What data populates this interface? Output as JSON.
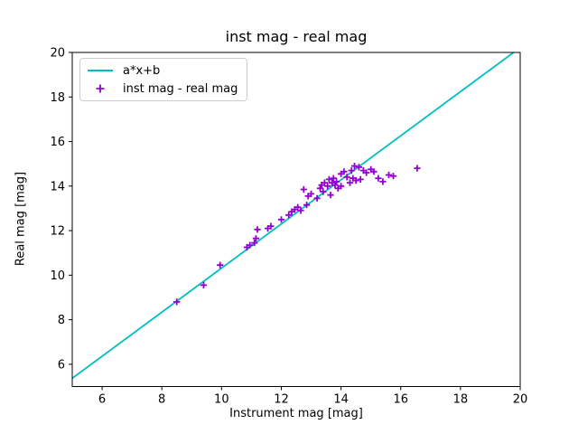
{
  "chart_data": {
    "type": "scatter",
    "title": "inst mag - real mag",
    "xlabel": "Instrument mag [mag]",
    "ylabel": "Real mag [mag]",
    "xlim": [
      5,
      20
    ],
    "ylim": [
      5,
      20
    ],
    "xticks": [
      6,
      8,
      10,
      12,
      14,
      16,
      18,
      20
    ],
    "yticks": [
      6,
      8,
      10,
      12,
      14,
      16,
      18,
      20
    ],
    "grid": false,
    "legend_position": "upper left",
    "background_color": "#ffffff",
    "axis_color": "#000000",
    "series": [
      {
        "name": "a*x+b",
        "type": "line",
        "color": "#00bfbf",
        "a": 0.99,
        "b": 0.42
      },
      {
        "name": "inst mag - real mag",
        "type": "scatter",
        "marker": "+",
        "color": "#9400d3",
        "points": [
          [
            8.5,
            8.8
          ],
          [
            9.4,
            9.55
          ],
          [
            9.95,
            10.45
          ],
          [
            10.85,
            11.25
          ],
          [
            10.95,
            11.35
          ],
          [
            11.1,
            11.45
          ],
          [
            11.15,
            11.65
          ],
          [
            11.2,
            12.05
          ],
          [
            11.55,
            12.1
          ],
          [
            11.65,
            12.2
          ],
          [
            12.0,
            12.5
          ],
          [
            12.25,
            12.7
          ],
          [
            12.35,
            12.85
          ],
          [
            12.45,
            12.95
          ],
          [
            12.55,
            13.05
          ],
          [
            12.65,
            12.9
          ],
          [
            12.75,
            13.85
          ],
          [
            12.85,
            13.15
          ],
          [
            12.9,
            13.55
          ],
          [
            13.0,
            13.65
          ],
          [
            13.2,
            13.45
          ],
          [
            13.3,
            13.9
          ],
          [
            13.35,
            14.05
          ],
          [
            13.4,
            13.75
          ],
          [
            13.45,
            14.15
          ],
          [
            13.55,
            14.0
          ],
          [
            13.6,
            14.3
          ],
          [
            13.65,
            13.6
          ],
          [
            13.7,
            14.15
          ],
          [
            13.75,
            14.35
          ],
          [
            13.8,
            14.05
          ],
          [
            13.85,
            14.2
          ],
          [
            13.9,
            13.9
          ],
          [
            14.0,
            14.0
          ],
          [
            14.0,
            14.55
          ],
          [
            14.1,
            14.65
          ],
          [
            14.2,
            14.4
          ],
          [
            14.3,
            14.15
          ],
          [
            14.35,
            14.7
          ],
          [
            14.4,
            14.35
          ],
          [
            14.45,
            14.9
          ],
          [
            14.5,
            14.25
          ],
          [
            14.6,
            14.85
          ],
          [
            14.65,
            14.3
          ],
          [
            14.75,
            14.7
          ],
          [
            14.85,
            14.6
          ],
          [
            15.0,
            14.75
          ],
          [
            15.1,
            14.65
          ],
          [
            15.25,
            14.35
          ],
          [
            15.4,
            14.2
          ],
          [
            15.6,
            14.5
          ],
          [
            15.75,
            14.45
          ],
          [
            16.55,
            14.8
          ]
        ]
      }
    ]
  }
}
